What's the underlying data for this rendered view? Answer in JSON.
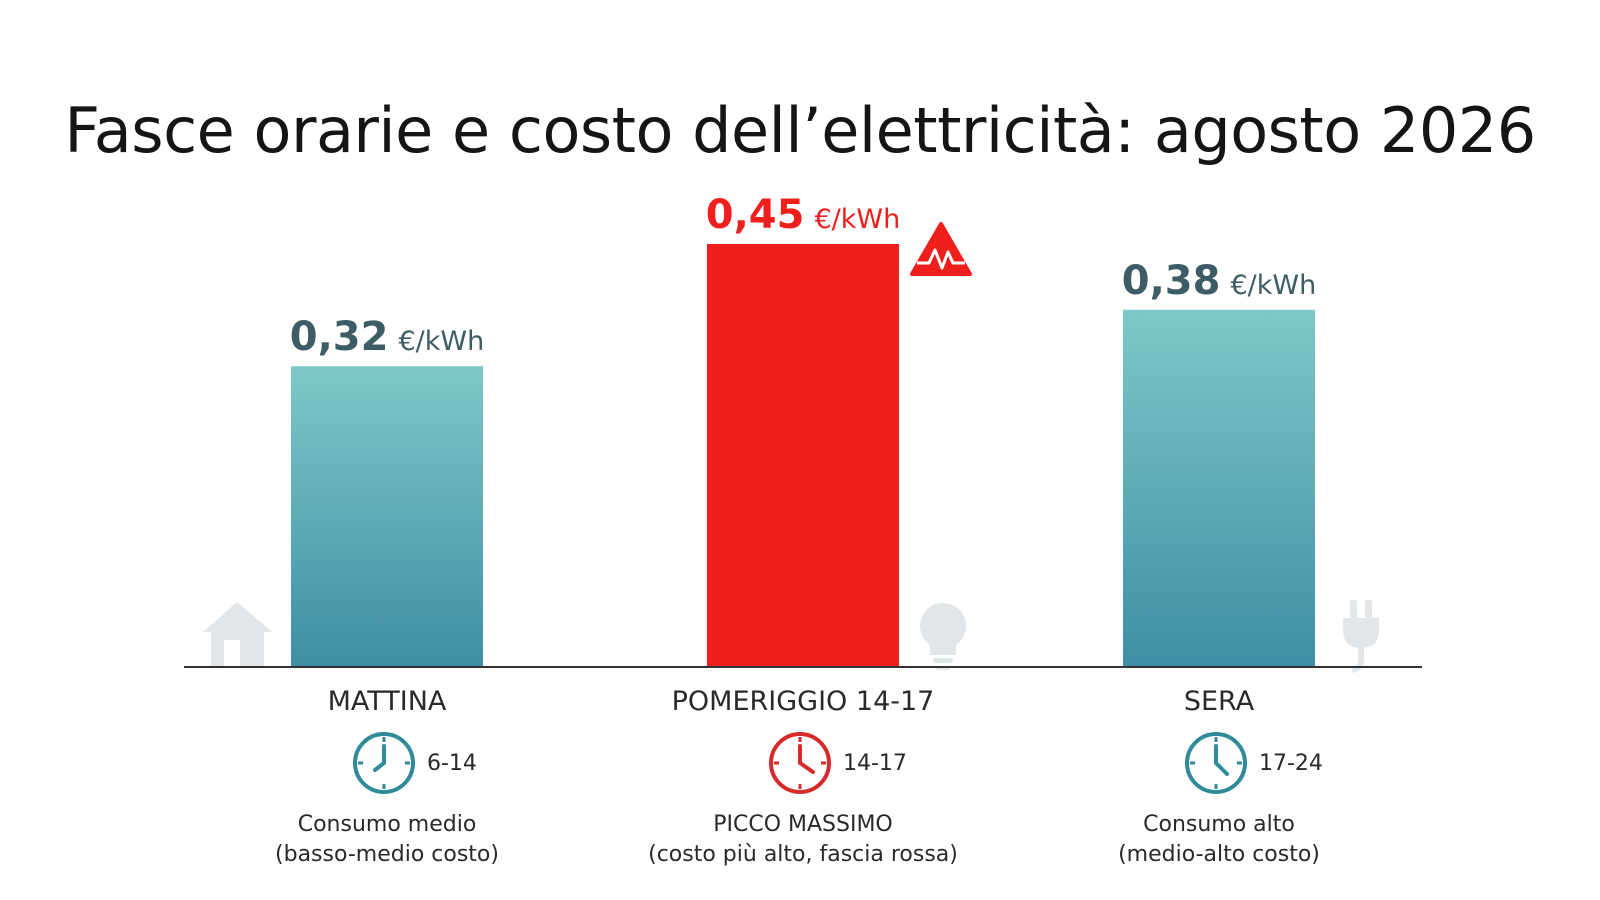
{
  "chart_data": {
    "type": "bar",
    "title": "Fasce orarie e costo dell’elettricità: agosto 2026",
    "categories": [
      "MATTINA",
      "POMERIGGIO 14-17",
      "SERA"
    ],
    "values": [
      0.32,
      0.45,
      0.38
    ],
    "value_labels": [
      "0,32",
      "0,45",
      "0,38"
    ],
    "unit": "€/kWh",
    "ylim": [
      0,
      0.5
    ],
    "grid": false,
    "legend": "none",
    "time_ranges": [
      "6-14",
      "14-17",
      "17-24"
    ],
    "descriptions": [
      [
        "Consumo medio",
        "(basso-medio costo)"
      ],
      [
        "PICCO MASSIMO",
        "(costo più alto, fascia rossa)"
      ],
      [
        "Consumo alto",
        "(medio-alto costo)"
      ]
    ]
  },
  "icons": [
    "house-icon",
    "peak-warning-icon",
    "lightbulb-icon",
    "plug-icon",
    "clock-icon"
  ],
  "colors": {
    "teal_top": "#7ec8c8",
    "teal_bottom": "#3e8fa5",
    "red": "#ee1f1c",
    "value_teal": "#3d5d66",
    "clock_teal": "#2f8a9a",
    "clock_red": "#d72a2a",
    "icon_grey": "#e3e6e8",
    "axis": "#333333"
  }
}
